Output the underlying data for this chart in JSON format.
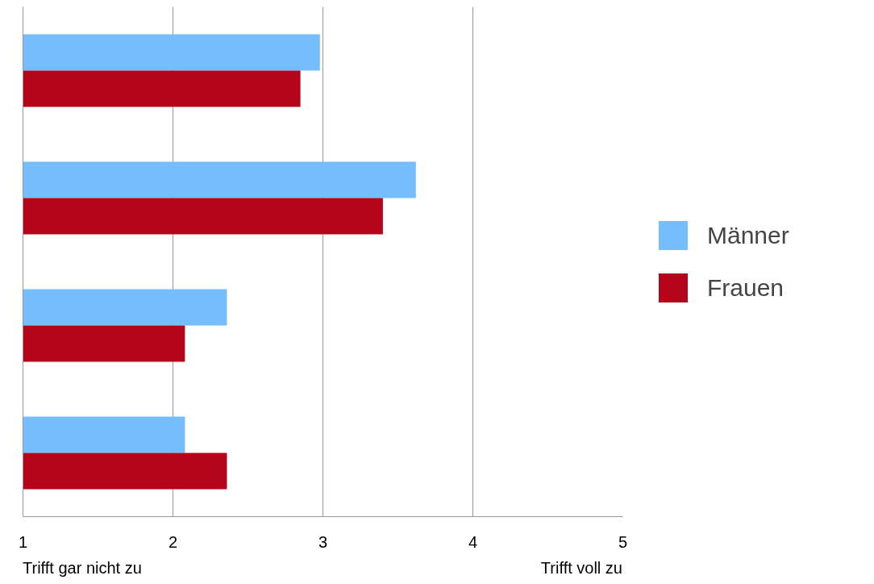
{
  "chart_data": {
    "type": "bar",
    "orientation": "horizontal",
    "categories": [
      null,
      null,
      null,
      null
    ],
    "series": [
      {
        "name": "Männer",
        "color": "#75bdfd",
        "values": [
          2.98,
          3.62,
          2.36,
          2.08
        ]
      },
      {
        "name": "Frauen",
        "color": "#b5051b",
        "values": [
          2.85,
          3.4,
          2.08,
          2.36
        ]
      }
    ],
    "xlim": [
      1,
      5
    ],
    "xticks": [
      1,
      2,
      3,
      4,
      5
    ],
    "grid": "x",
    "legend": "right",
    "annotations": [
      "Trifft gar nicht zu",
      "Trifft voll zu"
    ]
  }
}
